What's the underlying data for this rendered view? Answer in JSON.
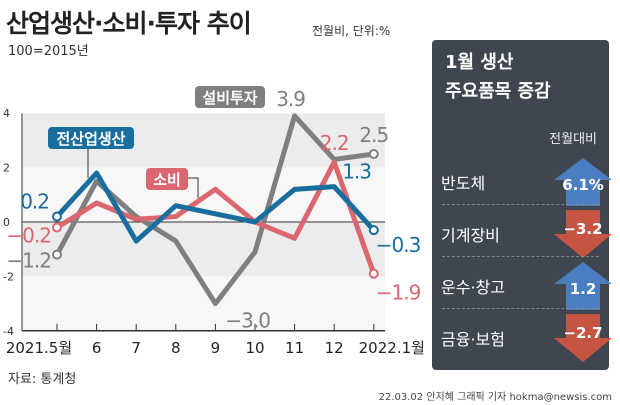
{
  "header": {
    "title": "산업생산·소비·투자 추이",
    "subtitle": "전월비, 단위:%",
    "base": "100=2015년"
  },
  "chart_data": {
    "type": "line",
    "x": [
      "2021.5월",
      "6",
      "7",
      "8",
      "9",
      "10",
      "11",
      "12",
      "2022.1월"
    ],
    "yticks": [
      "4",
      "2",
      "0",
      "-2",
      "-4"
    ],
    "ylim": [
      -4,
      4
    ],
    "series": [
      {
        "name": "설비투자",
        "color": "#7f7f7f",
        "values": [
          -1.2,
          1.5,
          0.2,
          -0.7,
          -3.0,
          -1.1,
          3.9,
          2.3,
          2.5
        ],
        "labels": {
          "0": "−1.2",
          "4": "−3.0",
          "6": "3.9",
          "8": "2.5"
        }
      },
      {
        "name": "소비",
        "color": "#dc6670",
        "values": [
          -0.2,
          0.7,
          0.1,
          0.2,
          1.2,
          0.0,
          -0.6,
          2.2,
          -1.9
        ],
        "labels": {
          "0": "−0.2",
          "7": "2.2",
          "8": "−1.9"
        }
      },
      {
        "name": "전산업생산",
        "color": "#1a6e9e",
        "values": [
          0.2,
          1.8,
          -0.7,
          0.6,
          0.3,
          0.0,
          1.2,
          1.3,
          -0.3
        ],
        "labels": {
          "0": "0.2",
          "7": "1.3",
          "8": "−0.3"
        }
      }
    ]
  },
  "panel": {
    "title1": "1월 생산",
    "title2": "주요품목 증감",
    "column": "전월대비",
    "items": [
      {
        "label": "반도체",
        "value": "6.1%",
        "dir": "up"
      },
      {
        "label": "기계장비",
        "value": "−3.2",
        "dir": "down"
      },
      {
        "label": "운수·창고",
        "value": "1.2",
        "dir": "up"
      },
      {
        "label": "금융·보험",
        "value": "−2.7",
        "dir": "down"
      }
    ],
    "up_color": "#4a7ec0",
    "down_color": "#c65442"
  },
  "footer": {
    "source": "자료: 통계청",
    "credit": "22.03.02 안지혜 그래픽 기자 hokma@newsis.com"
  }
}
